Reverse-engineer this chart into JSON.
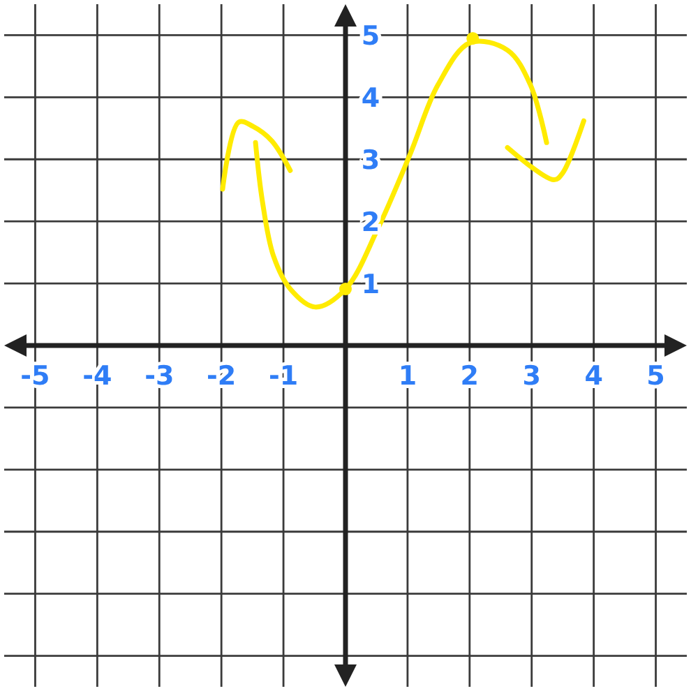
{
  "chart_data": {
    "type": "line",
    "xlim": [
      -5.5,
      5.5
    ],
    "ylim": [
      -5.5,
      5.5
    ],
    "xticks": [
      -5,
      -4,
      -3,
      -2,
      -1,
      {
        "value": 0,
        "label": null
      },
      1,
      2,
      3,
      4,
      5
    ],
    "yticks": [
      {
        "value": -5,
        "label": null
      },
      {
        "value": -4,
        "label": null
      },
      {
        "value": -3,
        "label": null
      },
      {
        "value": -2,
        "label": null
      },
      {
        "value": -1,
        "label": null
      },
      {
        "value": 0,
        "label": null
      },
      1,
      2,
      3,
      4,
      5
    ],
    "grid": true,
    "line_style": "solid",
    "marker": "none",
    "series": [
      {
        "color": "#ffeb00",
        "x": [
          -1.98,
          -1.72,
          -1.49,
          -1.19,
          -0.89
        ],
        "values": [
          2.52,
          3.6,
          3.53,
          3.3,
          2.82
        ]
      },
      {
        "color": "#ffeb00",
        "x": [
          -1.45,
          -1.34,
          -1.16,
          -0.89,
          -0.49,
          0,
          0.52,
          1.04,
          1.49,
          2.01,
          2.61,
          2.98,
          3.24
        ],
        "values": [
          3.27,
          2.33,
          1.44,
          0.91,
          0.62,
          0.91,
          1.88,
          3.08,
          4.2,
          4.88,
          4.76,
          4.2,
          3.27
        ]
      },
      {
        "color": "#ffeb00",
        "x": [
          2.61,
          3.36,
          3.5,
          3.84
        ],
        "values": [
          3.19,
          2.67,
          2.78,
          3.62
        ]
      },
      {
        "type": "scatter",
        "marker": "circle",
        "color": "#ffeb00",
        "x": [
          0,
          2.05
        ],
        "values": [
          0.91,
          4.95
        ]
      }
    ]
  }
}
